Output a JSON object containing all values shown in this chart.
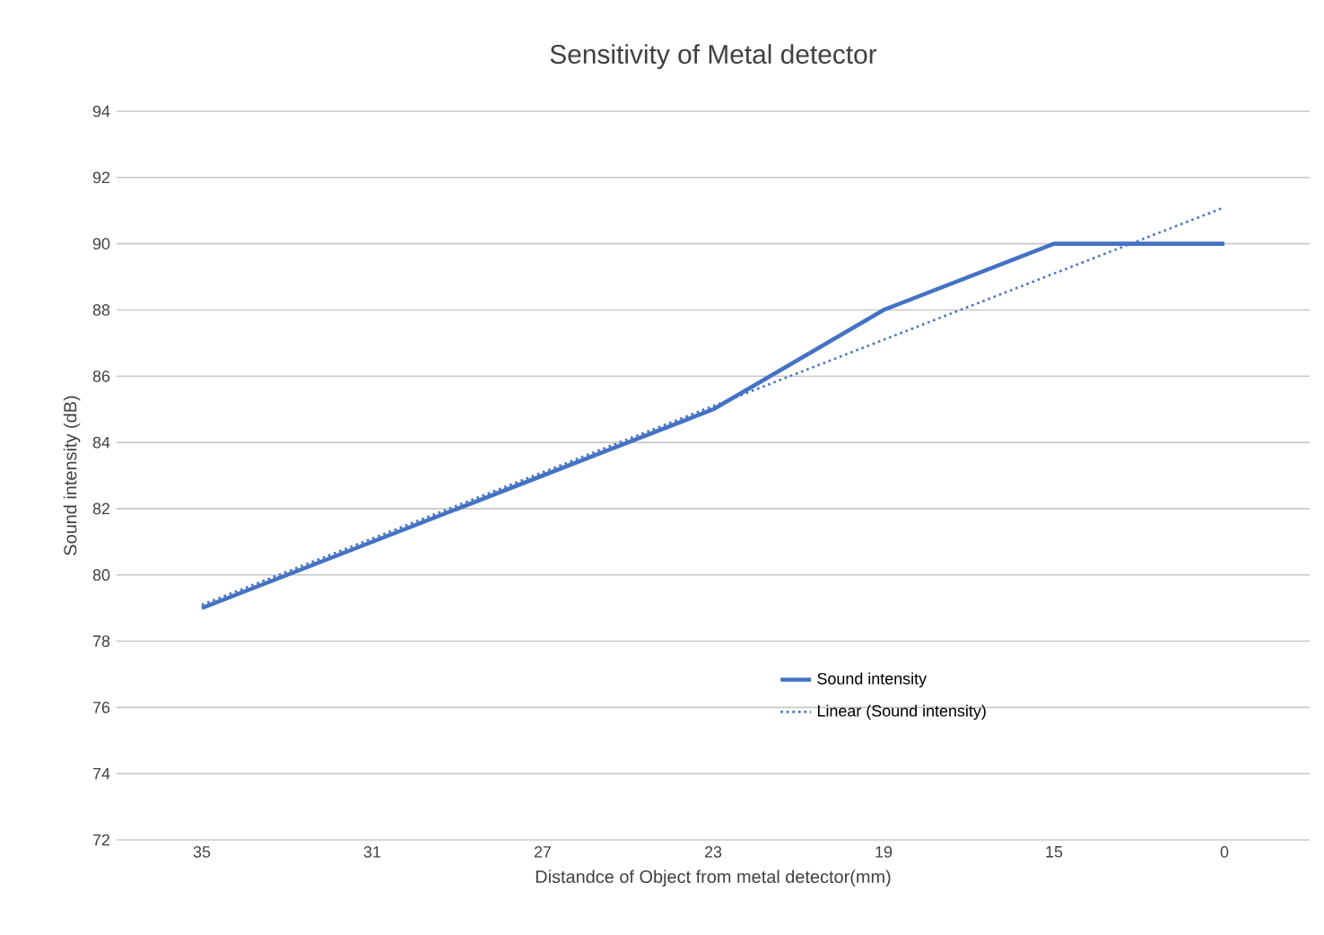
{
  "chart_data": {
    "type": "line",
    "title": "Sensitivity of Metal detector",
    "xlabel": "Distandce of Object from metal detector(mm)",
    "ylabel": "Sound intensity  (dB)",
    "categories": [
      "35",
      "31",
      "27",
      "23",
      "19",
      "15",
      "0"
    ],
    "series": [
      {
        "name": "Sound intensity",
        "color": "#4472c4",
        "values": [
          79,
          81,
          83,
          85,
          88,
          90,
          90
        ],
        "line_style": "solid"
      },
      {
        "name": "Linear (Sound intensity)",
        "color": "#4472c4",
        "values": [
          79.1,
          81.1,
          83.1,
          85.1,
          87.1,
          89.1,
          91.1
        ],
        "line_style": "dotted"
      }
    ],
    "ylim": [
      72,
      94
    ],
    "yticks": [
      72,
      74,
      76,
      78,
      80,
      82,
      84,
      86,
      88,
      90,
      92,
      94
    ],
    "grid": "y",
    "legend": "bottom right",
    "marker": "none"
  }
}
